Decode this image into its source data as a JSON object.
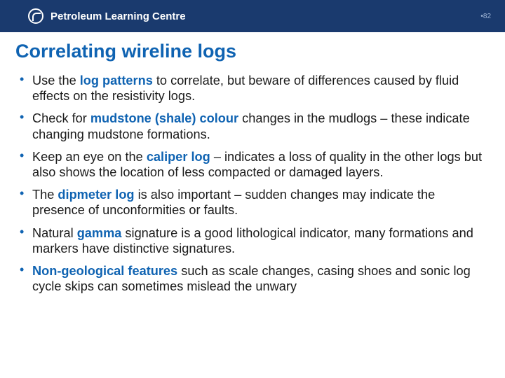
{
  "colors": {
    "header_bg": "#1a3a6e",
    "accent": "#0f63b2",
    "text": "#1a1a1a",
    "pagenum": "#9fb5d6",
    "bg": "#ffffff"
  },
  "typography": {
    "title_fontsize": 27,
    "body_fontsize": 18.2,
    "brand_fontsize": 15,
    "pagenum_fontsize": 10,
    "line_height": 1.22,
    "font_family": "Arial"
  },
  "header": {
    "brand": "Petroleum Learning Centre",
    "page_number": "•82"
  },
  "title": "Correlating wireline logs",
  "bullets": [
    {
      "pre": "Use the ",
      "kw": "log patterns",
      "post": " to correlate, but beware of differences caused by fluid effects on the resistivity logs."
    },
    {
      "pre": "Check for ",
      "kw": "mudstone (shale) colour",
      "post": " changes in the mudlogs – these indicate changing mudstone formations."
    },
    {
      "pre": " Keep an eye on the ",
      "kw": "caliper log",
      "post": " – indicates a loss of quality in the other logs but also shows the location of less compacted or damaged layers."
    },
    {
      "pre": "The ",
      "kw": "dipmeter log",
      "post": " is also important – sudden changes may indicate the presence of unconformities or faults."
    },
    {
      "pre": "Natural ",
      "kw": "gamma",
      "post": " signature is a good lithological indicator, many formations and markers have distinctive signatures."
    },
    {
      "pre": "",
      "kw": "Non-geological features",
      "post": " such as scale changes, casing shoes and sonic log cycle skips can sometimes mislead the unwary"
    }
  ]
}
